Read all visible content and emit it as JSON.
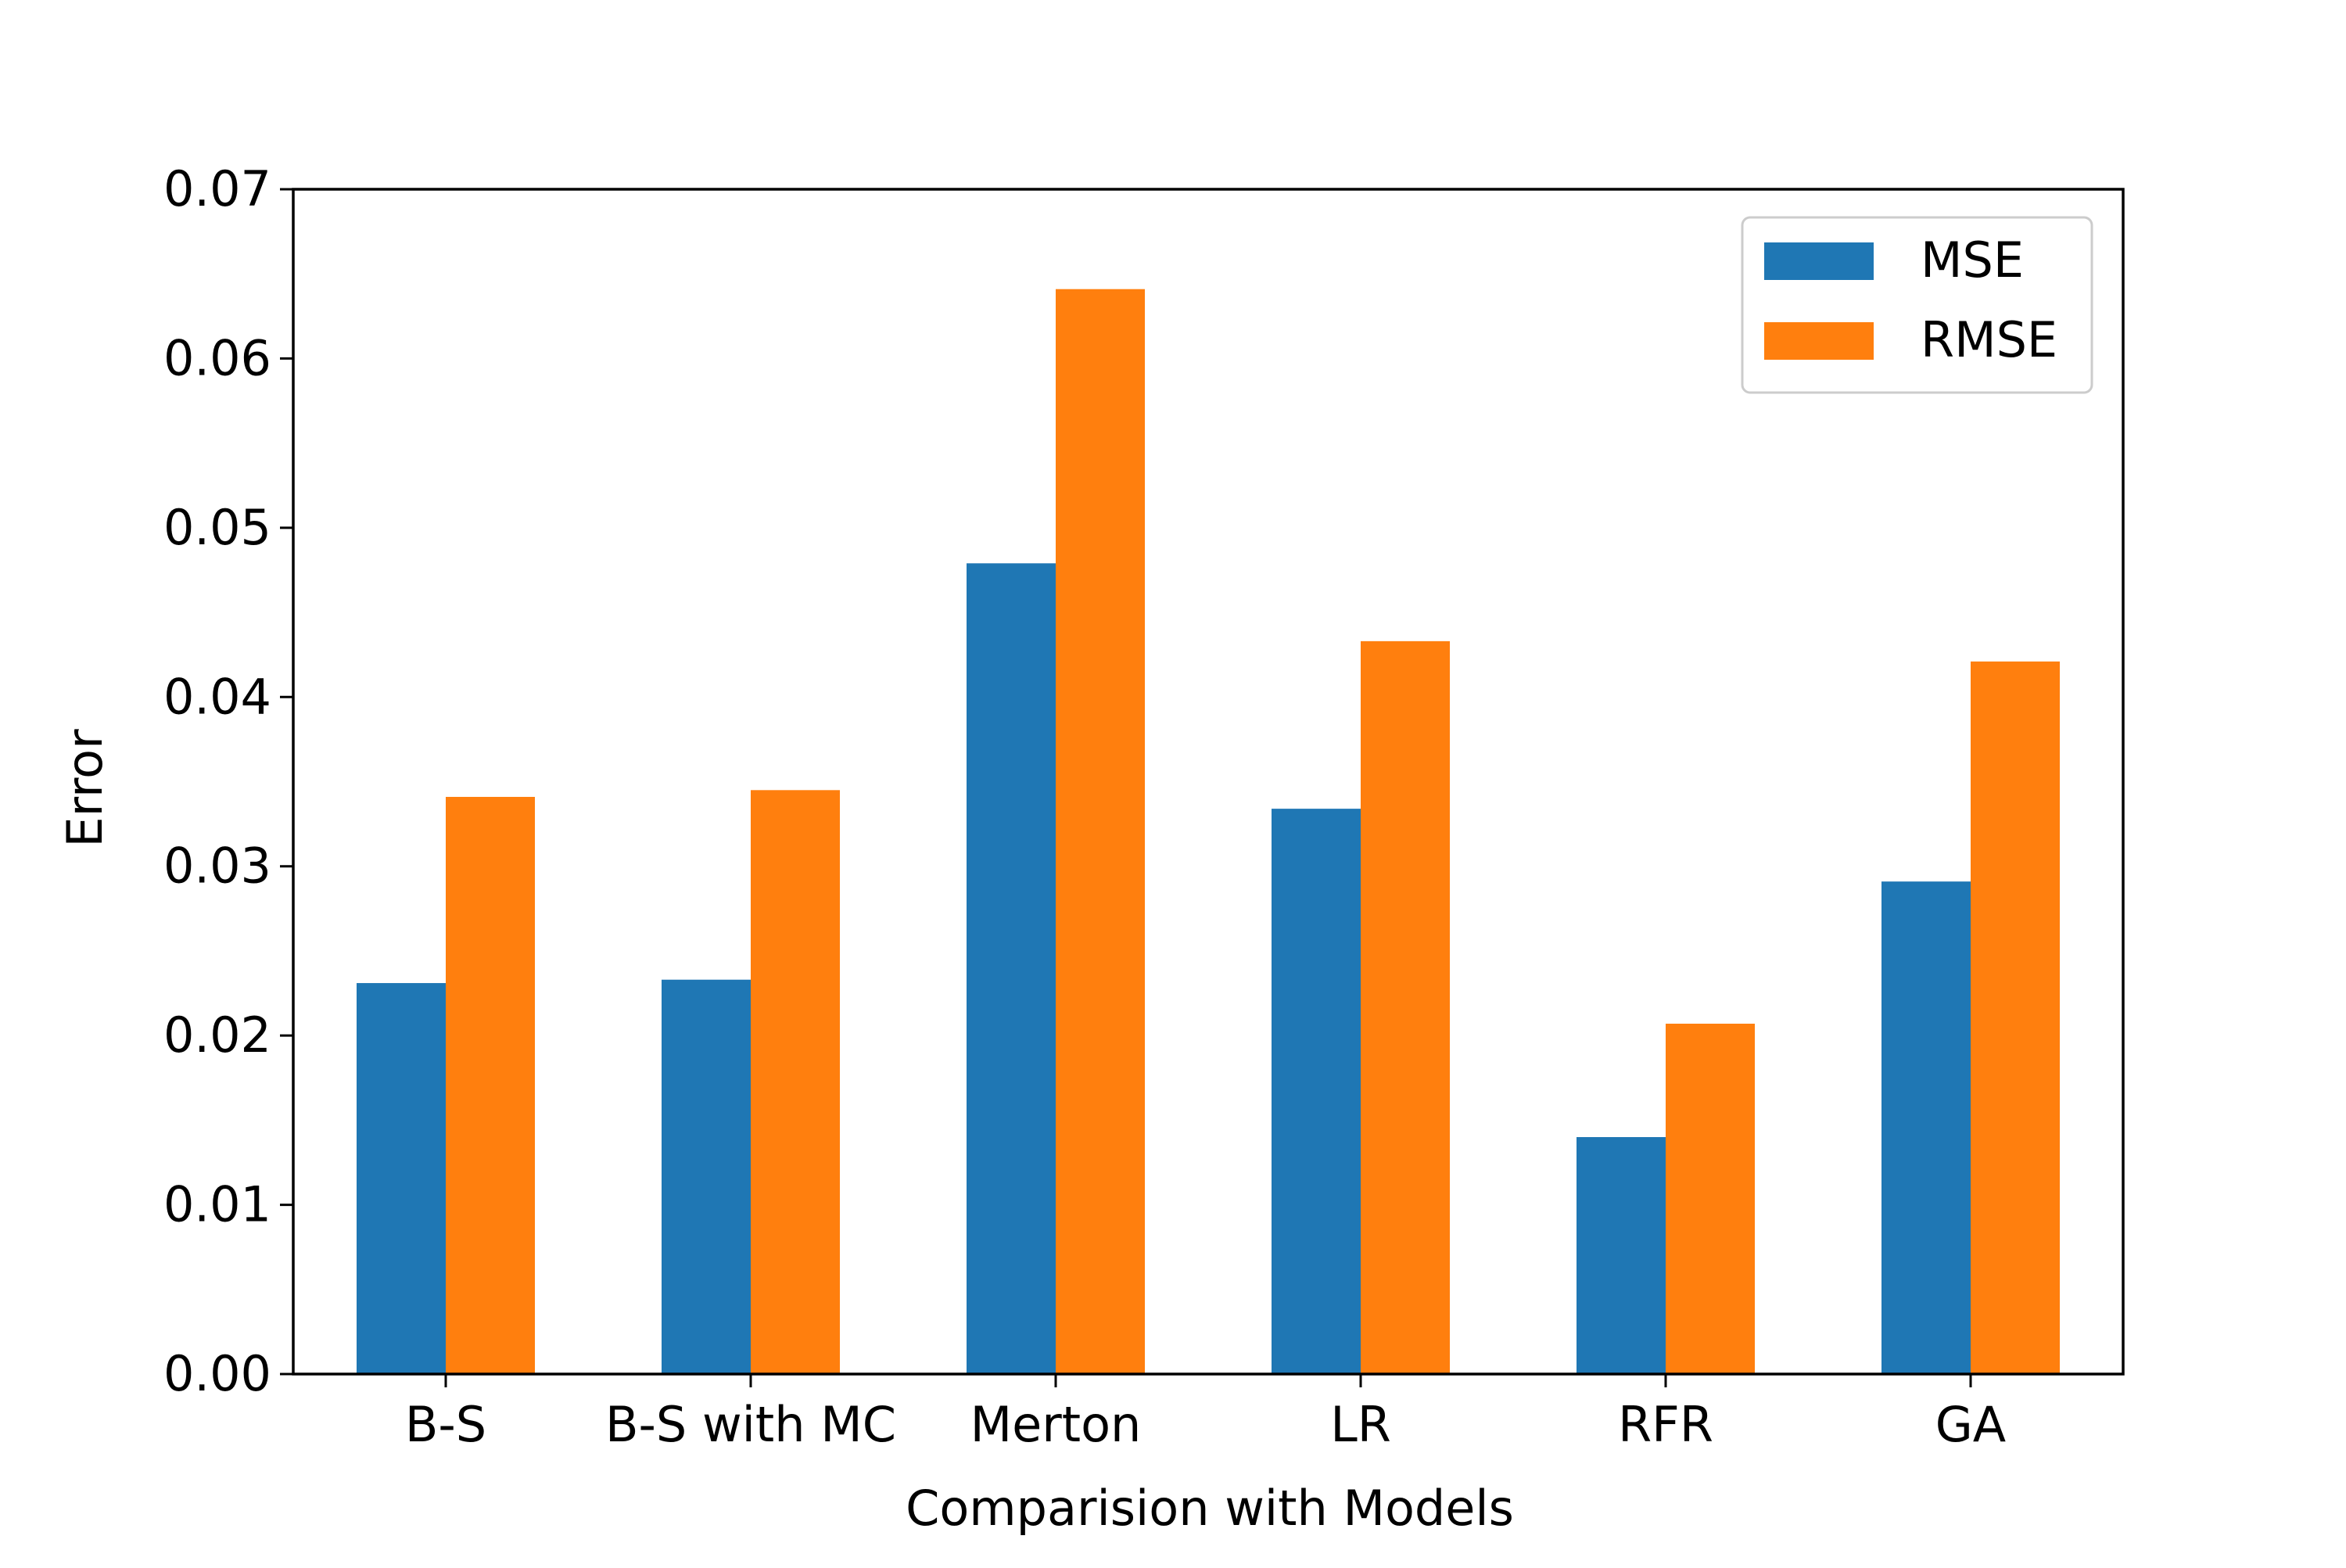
{
  "chart_data": {
    "type": "bar",
    "title": "",
    "xlabel": "Comparision with Models",
    "ylabel": "Error",
    "categories": [
      "B-S",
      "B-S with MC",
      "Merton",
      "LR",
      "RFR",
      "GA"
    ],
    "series": [
      {
        "name": "MSE",
        "color": "#1f77b4",
        "values": [
          0.0231,
          0.0233,
          0.0479,
          0.0334,
          0.014,
          0.0291
        ]
      },
      {
        "name": "RMSE",
        "color": "#ff7f0e",
        "values": [
          0.0341,
          0.0345,
          0.0641,
          0.0433,
          0.0207,
          0.0421
        ]
      }
    ],
    "ylim": [
      0,
      0.07
    ],
    "yticks": [
      "0.00",
      "0.01",
      "0.02",
      "0.03",
      "0.04",
      "0.05",
      "0.06",
      "0.07"
    ],
    "grid": false,
    "legend_position": "top-right"
  }
}
